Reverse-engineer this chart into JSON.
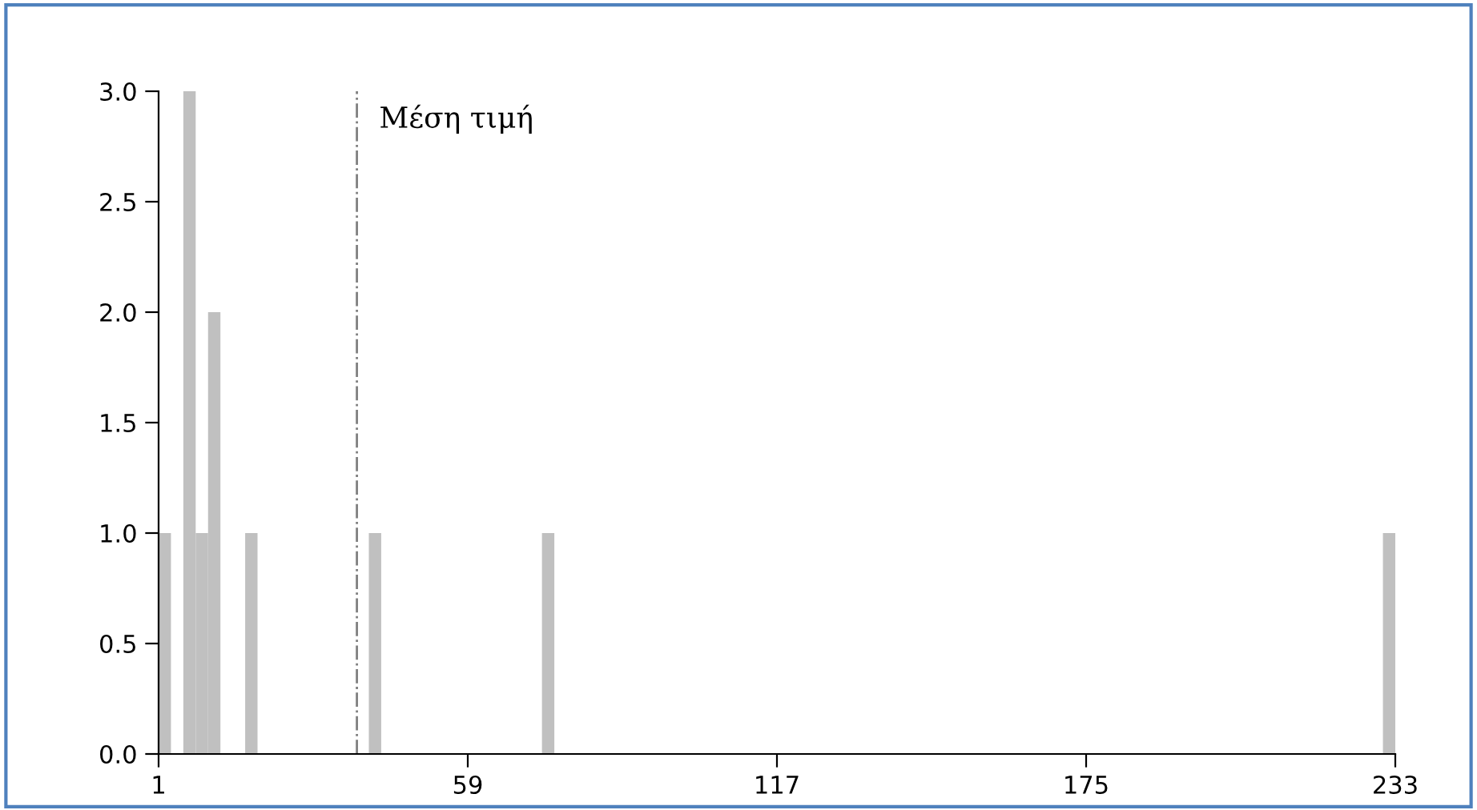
{
  "chart_data": {
    "type": "histogram",
    "color": "#c0c0c0",
    "bins": [
      1,
      3.32,
      5.64,
      7.96,
      10.28,
      12.6,
      14.92,
      17.24,
      19.56,
      21.88,
      24.2,
      26.52,
      28.84,
      31.16,
      33.48,
      35.8,
      38.12,
      40.44,
      42.76,
      45.08,
      47.4,
      49.72,
      52.04,
      54.36,
      56.68,
      59,
      61.32,
      63.64,
      65.96,
      68.28,
      70.6,
      72.92,
      75.24,
      77.56,
      79.88,
      82.2,
      84.52,
      86.84,
      89.16,
      91.48,
      93.8,
      96.12,
      98.44,
      100.76,
      103.08,
      105.4,
      107.72,
      110.04,
      112.36,
      114.68,
      117,
      119.32,
      121.64,
      123.96,
      126.28,
      128.6,
      130.92,
      133.24,
      135.56,
      137.88,
      140.2,
      142.52,
      144.84,
      147.16,
      149.48,
      151.8,
      154.12,
      156.44,
      158.76,
      161.08,
      163.4,
      165.72,
      168.04,
      170.36,
      172.68,
      175,
      177.32,
      179.64,
      181.96,
      184.28,
      186.6,
      188.92,
      191.24,
      193.56,
      195.88,
      198.2,
      200.52,
      202.84,
      205.16,
      207.48,
      209.8,
      212.12,
      214.44,
      216.76,
      219.08,
      221.4,
      223.72,
      226.04,
      228.36,
      230.68,
      233
    ],
    "values": [
      1,
      0,
      3,
      1,
      2,
      0,
      0,
      1,
      0,
      0,
      0,
      0,
      0,
      0,
      0,
      0,
      0,
      1,
      0,
      0,
      0,
      0,
      0,
      0,
      0,
      0,
      0,
      0,
      0,
      0,
      0,
      1,
      0,
      0,
      0,
      0,
      0,
      0,
      0,
      0,
      0,
      0,
      0,
      0,
      0,
      0,
      0,
      0,
      0,
      0,
      0,
      0,
      0,
      0,
      0,
      0,
      0,
      0,
      0,
      0,
      0,
      0,
      0,
      0,
      0,
      0,
      0,
      0,
      0,
      0,
      0,
      0,
      0,
      0,
      0,
      0,
      0,
      0,
      0,
      0,
      0,
      0,
      0,
      0,
      0,
      0,
      0,
      0,
      0,
      0,
      0,
      0,
      0,
      0,
      0,
      0,
      0,
      0,
      0,
      1
    ],
    "xlim": [
      1,
      233
    ],
    "xticks": [
      1,
      59,
      117,
      175,
      233
    ],
    "ylim": [
      0,
      3
    ],
    "yticks": [
      {
        "value": 0,
        "label": "0.0"
      },
      {
        "value": 0.5,
        "label": "0.5"
      },
      {
        "value": 1,
        "label": "1.0"
      },
      {
        "value": 1.5,
        "label": "1.5"
      },
      {
        "value": 2,
        "label": "2.0"
      },
      {
        "value": 2.5,
        "label": "2.5"
      },
      {
        "value": 3,
        "label": "3.0"
      }
    ],
    "ref_lines": [
      {
        "axis": "x",
        "value": 38.2,
        "label": "Μέση τιμή",
        "color": "#808080",
        "line_style": "dashdot"
      }
    ],
    "grid": false,
    "legend": false
  }
}
